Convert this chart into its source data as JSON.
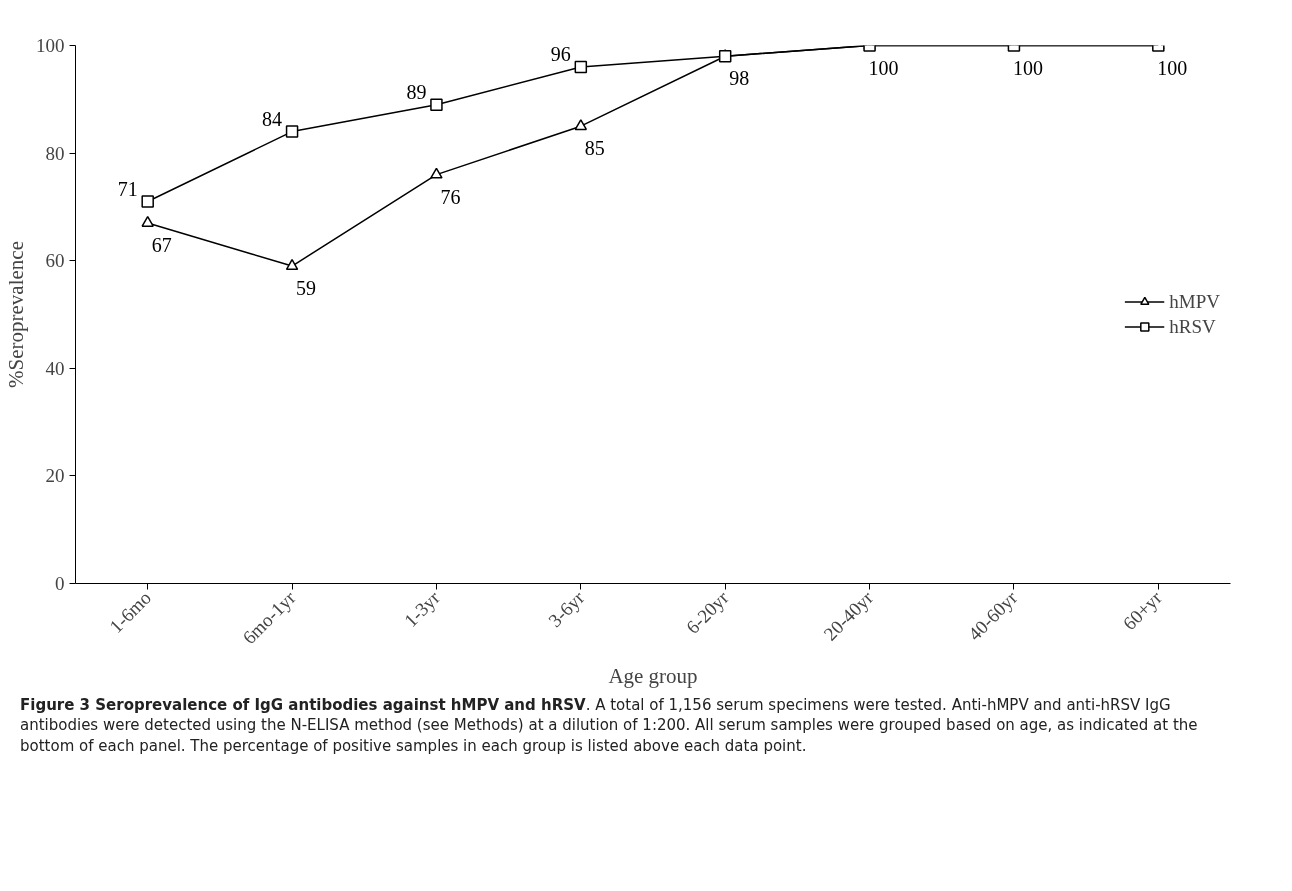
{
  "chart_data": {
    "type": "line",
    "xlabel": "Age group",
    "ylabel": "%Seroprevalence",
    "categories": [
      "1-6mo",
      "6mo-1yr",
      "1-3yr",
      "3-6yr",
      "6-20yr",
      "20-40yr",
      "40-60yr",
      "60+yr"
    ],
    "series": [
      {
        "name": "hMPV",
        "color": "#000000",
        "marker": "triangle",
        "values": [
          67,
          59,
          76,
          85,
          98,
          100,
          100,
          100
        ],
        "value_labels": [
          "67",
          "59",
          "76",
          "85",
          "98",
          "100",
          "100",
          "100"
        ]
      },
      {
        "name": "hRSV",
        "color": "#000000",
        "marker": "square",
        "values": [
          71,
          84,
          89,
          96,
          98,
          100,
          100,
          100
        ],
        "value_labels": [
          "71",
          "84",
          "89",
          "96",
          null,
          null,
          null,
          null
        ]
      }
    ],
    "ylim": [
      0,
      100
    ],
    "yticks": [
      0,
      20,
      40,
      60,
      80,
      100
    ],
    "grid": false,
    "legend": "right",
    "line_style": "solid",
    "annotations": [
      "Figure 3 Seroprevalence of IgG antibodies against hMPV and hRSV",
      ". A total of 1,156 serum specimens were tested. Anti-hMPV and anti-hRSV IgG antibodies were detected using the N-ELISA method (see Methods) at a dilution of 1:200. All serum samples were grouped based on age, as indicated at the bottom of each panel. The percentage of positive samples in each group is listed above each data point."
    ]
  }
}
